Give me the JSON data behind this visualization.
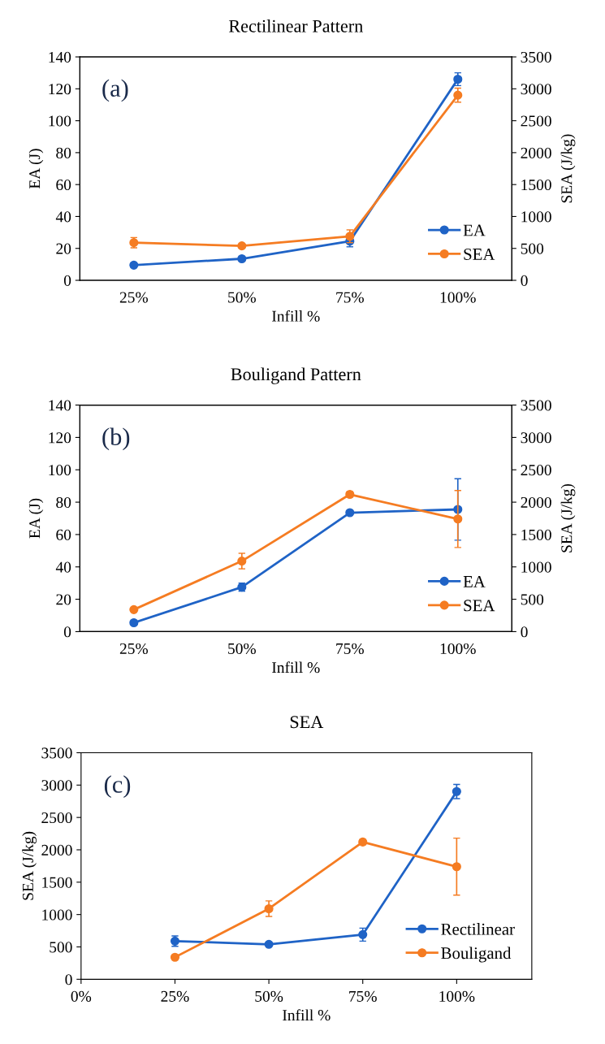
{
  "chart_data": [
    {
      "type": "line",
      "title": "Rectilinear Pattern",
      "xlabel": "Infill %",
      "ylabel": "EA (J)",
      "y2label": "SEA (J/kg)",
      "annotations": [
        "(a)"
      ],
      "categories": [
        "25%",
        "50%",
        "75%",
        "100%"
      ],
      "ylim": [
        0,
        140
      ],
      "yticks": [
        0,
        20,
        40,
        60,
        80,
        100,
        120,
        140
      ],
      "y2lim": [
        0,
        3500
      ],
      "y2ticks": [
        0,
        500,
        1000,
        1500,
        2000,
        2500,
        3000,
        3500
      ],
      "grid": false,
      "legend": "bottom right",
      "marker": "circle",
      "line_style": "solid",
      "series": [
        {
          "name": "EA",
          "color": "#1f63c6",
          "values": [
            9.5,
            13.5,
            24.5,
            126
          ],
          "errors": [
            1.5,
            1,
            3.5,
            4
          ]
        },
        {
          "name": "SEA",
          "color": "#f57c22",
          "axis": "y2",
          "values": [
            590,
            540,
            690,
            2900
          ],
          "errors": [
            80,
            30,
            100,
            110
          ]
        }
      ]
    },
    {
      "type": "line",
      "title": "Bouligand Pattern",
      "xlabel": "Infill %",
      "ylabel": "EA (J)",
      "y2label": "SEA (J/kg)",
      "annotations": [
        "(b)"
      ],
      "categories": [
        "25%",
        "50%",
        "75%",
        "100%"
      ],
      "ylim": [
        0,
        140
      ],
      "yticks": [
        0,
        20,
        40,
        60,
        80,
        100,
        120,
        140
      ],
      "y2lim": [
        0,
        3500
      ],
      "y2ticks": [
        0,
        500,
        1000,
        1500,
        2000,
        2500,
        3000,
        3500
      ],
      "grid": false,
      "legend": "bottom right",
      "marker": "circle",
      "line_style": "solid",
      "series": [
        {
          "name": "EA",
          "color": "#1f63c6",
          "values": [
            5.5,
            27.5,
            73.5,
            75.5
          ],
          "errors": [
            0.5,
            2.5,
            1,
            19
          ]
        },
        {
          "name": "SEA",
          "color": "#f57c22",
          "axis": "y2",
          "values": [
            340,
            1090,
            2120,
            1740
          ],
          "errors": [
            20,
            120,
            40,
            440
          ]
        }
      ]
    },
    {
      "type": "line",
      "title": "SEA",
      "xlabel": "Infill %",
      "ylabel": "SEA (J/kg)",
      "annotations": [
        "(c)"
      ],
      "x": [
        25,
        50,
        75,
        100
      ],
      "xlim": [
        0,
        120
      ],
      "xticks": [
        {
          "value": 0,
          "label": "0%"
        },
        {
          "value": 25,
          "label": "25%"
        },
        {
          "value": 50,
          "label": "50%"
        },
        {
          "value": 75,
          "label": "75%"
        },
        {
          "value": 100,
          "label": "100%"
        }
      ],
      "ylim": [
        0,
        3500
      ],
      "yticks": [
        0,
        500,
        1000,
        1500,
        2000,
        2500,
        3000,
        3500
      ],
      "grid": false,
      "legend": "bottom right",
      "marker": "circle",
      "line_style": "solid",
      "series": [
        {
          "name": "Rectilinear",
          "color": "#1f63c6",
          "values": [
            590,
            540,
            690,
            2900
          ],
          "errors": [
            80,
            30,
            100,
            110
          ]
        },
        {
          "name": "Bouligand",
          "color": "#f57c22",
          "values": [
            340,
            1090,
            2120,
            1740
          ],
          "errors": [
            20,
            120,
            40,
            440
          ]
        }
      ]
    }
  ]
}
